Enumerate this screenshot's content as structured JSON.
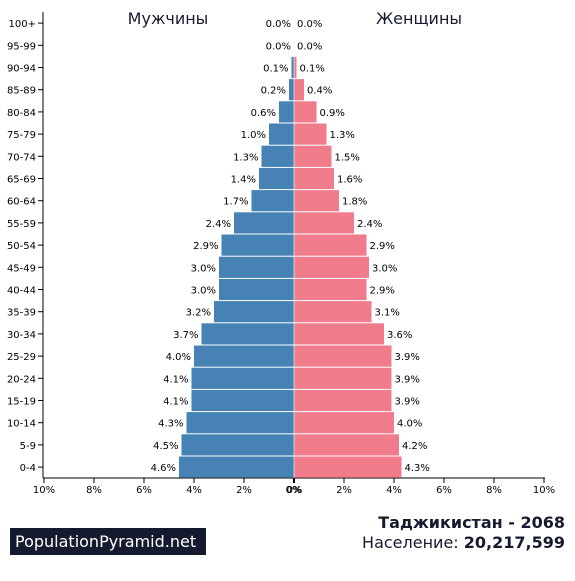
{
  "chart_data": {
    "type": "bar",
    "orientation": "horizontal-pyramid",
    "categories": [
      "100+",
      "95-99",
      "90-94",
      "85-89",
      "80-84",
      "75-79",
      "70-74",
      "65-69",
      "60-64",
      "55-59",
      "50-54",
      "45-49",
      "40-44",
      "35-39",
      "30-34",
      "25-29",
      "20-24",
      "15-19",
      "10-14",
      "5-9",
      "0-4"
    ],
    "series": [
      {
        "name": "Мужчины",
        "color": "#4682b4",
        "values": [
          0.0,
          0.0,
          0.1,
          0.2,
          0.6,
          1.0,
          1.3,
          1.4,
          1.7,
          2.4,
          2.9,
          3.0,
          3.0,
          3.2,
          3.7,
          4.0,
          4.1,
          4.1,
          4.3,
          4.5,
          4.6
        ],
        "labels": [
          "0.0%",
          "0.0%",
          "0.1%",
          "0.2%",
          "0.6%",
          "1.0%",
          "1.3%",
          "1.4%",
          "1.7%",
          "2.4%",
          "2.9%",
          "3.0%",
          "3.0%",
          "3.2%",
          "3.7%",
          "4.0%",
          "4.1%",
          "4.1%",
          "4.3%",
          "4.5%",
          "4.6%"
        ]
      },
      {
        "name": "Женщины",
        "color": "#f07b8a",
        "values": [
          0.0,
          0.0,
          0.1,
          0.4,
          0.9,
          1.3,
          1.5,
          1.6,
          1.8,
          2.4,
          2.9,
          3.0,
          2.9,
          3.1,
          3.6,
          3.9,
          3.9,
          3.9,
          4.0,
          4.2,
          4.3
        ],
        "labels": [
          "0.0%",
          "0.0%",
          "0.1%",
          "0.4%",
          "0.9%",
          "1.3%",
          "1.5%",
          "1.6%",
          "1.8%",
          "2.4%",
          "2.9%",
          "3.0%",
          "2.9%",
          "3.1%",
          "3.6%",
          "3.9%",
          "3.9%",
          "3.9%",
          "4.0%",
          "4.2%",
          "4.3%"
        ]
      }
    ],
    "xlim": [
      0,
      10
    ],
    "x_ticks": [
      "10%",
      "8%",
      "6%",
      "4%",
      "2%",
      "0%",
      "0%",
      "2%",
      "4%",
      "6%",
      "8%",
      "10%"
    ],
    "grid": false
  },
  "footer": {
    "brand": "PopulationPyramid.net",
    "country_year": "Таджикистан - 2068",
    "population_label": "Население: ",
    "population_value": "20,217,599"
  }
}
